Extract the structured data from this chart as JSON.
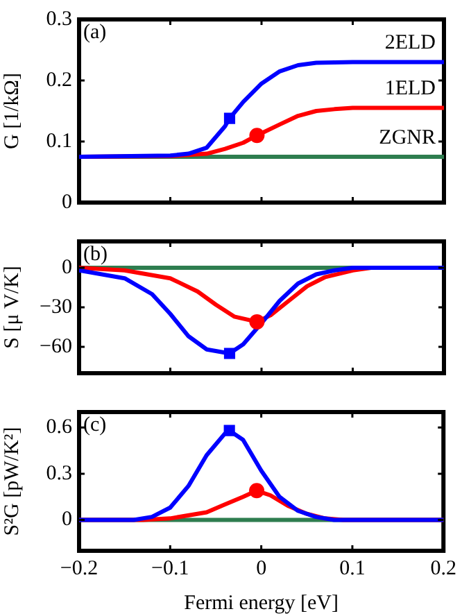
{
  "chart_data": [
    {
      "type": "line",
      "ylabel": "G [1/kΩ]",
      "annotations": [
        "(a)"
      ],
      "xlim": [
        -0.2,
        0.2
      ],
      "xticks": [
        -0.2,
        -0.1,
        0,
        0.1,
        0.2
      ],
      "ylim": [
        0,
        0.3
      ],
      "yticks": [
        0,
        0.1,
        0.2,
        0.3
      ],
      "tick_labels": "y",
      "grid": false,
      "legend": false,
      "series": [
        {
          "name": "2ELD",
          "color": "#0000ff",
          "x": [
            -0.2,
            -0.1,
            -0.08,
            -0.06,
            -0.04,
            -0.035,
            -0.02,
            0,
            0.02,
            0.04,
            0.06,
            0.1,
            0.2
          ],
          "values": [
            0.075,
            0.077,
            0.08,
            0.09,
            0.125,
            0.138,
            0.165,
            0.195,
            0.215,
            0.225,
            0.229,
            0.23,
            0.23
          ]
        },
        {
          "name": "1ELD",
          "color": "#ff0000",
          "x": [
            -0.2,
            -0.1,
            -0.06,
            -0.04,
            -0.02,
            -0.005,
            0.02,
            0.04,
            0.06,
            0.08,
            0.1,
            0.2
          ],
          "values": [
            0.075,
            0.076,
            0.08,
            0.088,
            0.098,
            0.11,
            0.128,
            0.142,
            0.15,
            0.153,
            0.155,
            0.155
          ]
        },
        {
          "name": "ZGNR",
          "color": "#2e7d4f",
          "x": [
            -0.2,
            0.2
          ],
          "values": [
            0.075,
            0.075
          ]
        },
        {
          "type": "scatter",
          "marker": "square",
          "color": "#0000ff",
          "x": [
            -0.035
          ],
          "values": [
            0.138
          ]
        },
        {
          "type": "scatter",
          "marker": "circle",
          "color": "#ff0000",
          "x": [
            -0.005
          ],
          "values": [
            0.11
          ]
        }
      ]
    },
    {
      "type": "line",
      "ylabel": "S [μ V/K]",
      "annotations": [
        "(b)"
      ],
      "xlim": [
        -0.2,
        0.2
      ],
      "xticks": [
        -0.2,
        -0.1,
        0,
        0.1,
        0.2
      ],
      "ylim": [
        -80,
        20
      ],
      "yticks": [
        -60,
        -30,
        0
      ],
      "tick_labels": "y",
      "grid": false,
      "legend": false,
      "series": [
        {
          "color": "#0000ff",
          "x": [
            -0.2,
            -0.15,
            -0.12,
            -0.1,
            -0.08,
            -0.06,
            -0.035,
            -0.02,
            0,
            0.02,
            0.04,
            0.06,
            0.08,
            0.1,
            0.2
          ],
          "values": [
            -2,
            -8,
            -20,
            -35,
            -52,
            -62,
            -65,
            -58,
            -42,
            -25,
            -12,
            -5,
            -2,
            0,
            0
          ]
        },
        {
          "color": "#ff0000",
          "x": [
            -0.2,
            -0.15,
            -0.1,
            -0.07,
            -0.05,
            -0.03,
            -0.005,
            0.01,
            0.03,
            0.05,
            0.07,
            0.1,
            0.12,
            0.2
          ],
          "values": [
            0,
            -2,
            -8,
            -18,
            -28,
            -37,
            -41,
            -36,
            -25,
            -14,
            -7,
            -2,
            0,
            0
          ]
        },
        {
          "color": "#2e7d4f",
          "x": [
            -0.2,
            0.2
          ],
          "values": [
            0,
            0
          ]
        },
        {
          "type": "scatter",
          "marker": "square",
          "color": "#0000ff",
          "x": [
            -0.035
          ],
          "values": [
            -65
          ]
        },
        {
          "type": "scatter",
          "marker": "circle",
          "color": "#ff0000",
          "x": [
            -0.005
          ],
          "values": [
            -41
          ]
        }
      ]
    },
    {
      "type": "line",
      "ylabel": "S²G [pW/K²]",
      "xlabel": "Fermi energy [eV]",
      "annotations": [
        "(c)"
      ],
      "xlim": [
        -0.2,
        0.2
      ],
      "xticks": [
        -0.2,
        -0.1,
        0,
        0.1,
        0.2
      ],
      "ylim": [
        -0.2,
        0.7
      ],
      "yticks": [
        0,
        0.3,
        0.6
      ],
      "grid": false,
      "legend": false,
      "series": [
        {
          "color": "#0000ff",
          "x": [
            -0.2,
            -0.14,
            -0.12,
            -0.1,
            -0.08,
            -0.06,
            -0.04,
            -0.035,
            -0.02,
            0,
            0.02,
            0.04,
            0.06,
            0.08,
            0.2
          ],
          "values": [
            0,
            0,
            0.02,
            0.08,
            0.22,
            0.42,
            0.56,
            0.58,
            0.52,
            0.32,
            0.15,
            0.06,
            0.02,
            0,
            0
          ]
        },
        {
          "color": "#ff0000",
          "x": [
            -0.2,
            -0.13,
            -0.1,
            -0.06,
            -0.04,
            -0.02,
            -0.005,
            0.01,
            0.03,
            0.05,
            0.07,
            0.09,
            0.2
          ],
          "values": [
            0,
            0,
            0.01,
            0.05,
            0.1,
            0.15,
            0.19,
            0.16,
            0.09,
            0.04,
            0.01,
            0,
            0
          ]
        },
        {
          "color": "#2e7d4f",
          "x": [
            -0.2,
            0.2
          ],
          "values": [
            0,
            0
          ]
        },
        {
          "type": "scatter",
          "marker": "square",
          "color": "#0000ff",
          "x": [
            -0.035
          ],
          "values": [
            0.58
          ]
        },
        {
          "type": "scatter",
          "marker": "circle",
          "color": "#ff0000",
          "x": [
            -0.005
          ],
          "values": [
            0.19
          ]
        }
      ]
    }
  ]
}
